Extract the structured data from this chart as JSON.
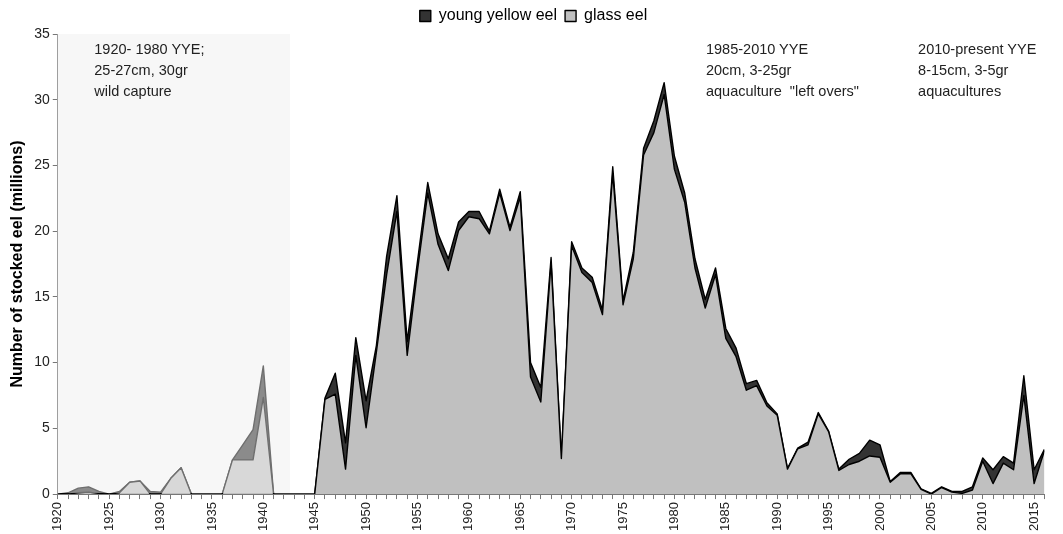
{
  "chart_data": {
    "type": "area",
    "stacked": true,
    "ylabel": "Number of stocked eel (millions)",
    "x": [
      1920,
      1921,
      1922,
      1923,
      1924,
      1925,
      1926,
      1927,
      1928,
      1929,
      1930,
      1931,
      1932,
      1933,
      1934,
      1935,
      1936,
      1937,
      1938,
      1939,
      1940,
      1941,
      1942,
      1943,
      1944,
      1945,
      1946,
      1947,
      1948,
      1949,
      1950,
      1951,
      1952,
      1953,
      1954,
      1955,
      1956,
      1957,
      1958,
      1959,
      1960,
      1961,
      1962,
      1963,
      1964,
      1965,
      1966,
      1967,
      1968,
      1969,
      1970,
      1971,
      1972,
      1973,
      1974,
      1975,
      1976,
      1977,
      1978,
      1979,
      1980,
      1981,
      1982,
      1983,
      1984,
      1985,
      1986,
      1987,
      1988,
      1989,
      1990,
      1991,
      1992,
      1993,
      1994,
      1995,
      1996,
      1997,
      1998,
      1999,
      2000,
      2001,
      2002,
      2003,
      2004,
      2005,
      2006,
      2007,
      2008,
      2009,
      2010,
      2011,
      2012,
      2013,
      2014,
      2015,
      2016
    ],
    "series": [
      {
        "name": "glass eel",
        "color": "#c0c0c0",
        "values": [
          0,
          0,
          0.1,
          0.15,
          0.05,
          0,
          0.1,
          0.9,
          1.0,
          0,
          0,
          1.2,
          2.0,
          0,
          0,
          0,
          0,
          2.6,
          2.6,
          2.6,
          7.35,
          0,
          0,
          0,
          0,
          0,
          7.2,
          7.6,
          1.9,
          10.55,
          5.05,
          10.8,
          16.7,
          21.5,
          10.55,
          17.0,
          22.9,
          19.0,
          17.0,
          20.05,
          21.1,
          20.95,
          19.8,
          22.9,
          20.05,
          22.6,
          8.9,
          7.0,
          17.6,
          2.7,
          18.9,
          16.85,
          16.1,
          13.65,
          24.4,
          14.4,
          17.9,
          25.8,
          27.5,
          30.4,
          24.7,
          22.2,
          17.2,
          14.15,
          16.7,
          11.85,
          10.45,
          7.9,
          8.25,
          6.7,
          6.0,
          1.9,
          3.45,
          3.75,
          6.1,
          4.75,
          1.8,
          2.25,
          2.5,
          2.9,
          2.8,
          0.9,
          1.55,
          1.55,
          0.35,
          0,
          0.5,
          0.15,
          0.05,
          0.3,
          2.5,
          0.8,
          2.35,
          1.85,
          7.5,
          0.8,
          3.3
        ]
      },
      {
        "name": "young yellow eel",
        "color": "#333333",
        "values": [
          0,
          0.1,
          0.35,
          0.4,
          0.15,
          0,
          0.1,
          0,
          0,
          0.2,
          0.15,
          0,
          0,
          0,
          0,
          0,
          0,
          0,
          1.15,
          2.3,
          2.4,
          0,
          0,
          0,
          0,
          0,
          0.1,
          1.6,
          2.0,
          1.35,
          2.05,
          0.5,
          1.4,
          1.2,
          1.05,
          0.7,
          0.8,
          0.8,
          0.9,
          0.65,
          0.4,
          0.55,
          0.2,
          0.3,
          0.25,
          0.4,
          1.1,
          1.1,
          0.4,
          0.05,
          0.3,
          0.35,
          0.4,
          0.35,
          0.5,
          0.3,
          0.5,
          0.5,
          0.9,
          0.9,
          1.0,
          0.7,
          0.7,
          0.65,
          0.5,
          0.75,
          0.65,
          0.5,
          0.4,
          0.25,
          0.1,
          0.05,
          0.05,
          0.2,
          0.1,
          0.05,
          0.1,
          0.4,
          0.6,
          1.2,
          0.95,
          0.05,
          0.1,
          0.1,
          0.05,
          0.05,
          0.05,
          0.05,
          0.15,
          0.25,
          0.25,
          1.05,
          0.5,
          0.5,
          1.5,
          1.05,
          0.1
        ]
      }
    ],
    "xlim": [
      1920,
      2016
    ],
    "xticks": [
      1920,
      {
        "value": 1921,
        "label": null
      },
      {
        "value": 1922,
        "label": null
      },
      {
        "value": 1923,
        "label": null
      },
      {
        "value": 1924,
        "label": null
      },
      1925,
      {
        "value": 1926,
        "label": null
      },
      {
        "value": 1927,
        "label": null
      },
      {
        "value": 1928,
        "label": null
      },
      {
        "value": 1929,
        "label": null
      },
      1930,
      {
        "value": 1931,
        "label": null
      },
      {
        "value": 1932,
        "label": null
      },
      {
        "value": 1933,
        "label": null
      },
      {
        "value": 1934,
        "label": null
      },
      1935,
      {
        "value": 1936,
        "label": null
      },
      {
        "value": 1937,
        "label": null
      },
      {
        "value": 1938,
        "label": null
      },
      {
        "value": 1939,
        "label": null
      },
      1940,
      {
        "value": 1941,
        "label": null
      },
      {
        "value": 1942,
        "label": null
      },
      {
        "value": 1943,
        "label": null
      },
      {
        "value": 1944,
        "label": null
      },
      1945,
      {
        "value": 1946,
        "label": null
      },
      {
        "value": 1947,
        "label": null
      },
      {
        "value": 1948,
        "label": null
      },
      {
        "value": 1949,
        "label": null
      },
      1950,
      {
        "value": 1951,
        "label": null
      },
      {
        "value": 1952,
        "label": null
      },
      {
        "value": 1953,
        "label": null
      },
      {
        "value": 1954,
        "label": null
      },
      1955,
      {
        "value": 1956,
        "label": null
      },
      {
        "value": 1957,
        "label": null
      },
      {
        "value": 1958,
        "label": null
      },
      {
        "value": 1959,
        "label": null
      },
      1960,
      {
        "value": 1961,
        "label": null
      },
      {
        "value": 1962,
        "label": null
      },
      {
        "value": 1963,
        "label": null
      },
      {
        "value": 1964,
        "label": null
      },
      1965,
      {
        "value": 1966,
        "label": null
      },
      {
        "value": 1967,
        "label": null
      },
      {
        "value": 1968,
        "label": null
      },
      {
        "value": 1969,
        "label": null
      },
      1970,
      {
        "value": 1971,
        "label": null
      },
      {
        "value": 1972,
        "label": null
      },
      {
        "value": 1973,
        "label": null
      },
      {
        "value": 1974,
        "label": null
      },
      1975,
      {
        "value": 1976,
        "label": null
      },
      {
        "value": 1977,
        "label": null
      },
      {
        "value": 1978,
        "label": null
      },
      {
        "value": 1979,
        "label": null
      },
      1980,
      {
        "value": 1981,
        "label": null
      },
      {
        "value": 1982,
        "label": null
      },
      {
        "value": 1983,
        "label": null
      },
      {
        "value": 1984,
        "label": null
      },
      1985,
      {
        "value": 1986,
        "label": null
      },
      {
        "value": 1987,
        "label": null
      },
      {
        "value": 1988,
        "label": null
      },
      {
        "value": 1989,
        "label": null
      },
      1990,
      {
        "value": 1991,
        "label": null
      },
      {
        "value": 1992,
        "label": null
      },
      {
        "value": 1993,
        "label": null
      },
      {
        "value": 1994,
        "label": null
      },
      1995,
      {
        "value": 1996,
        "label": null
      },
      {
        "value": 1997,
        "label": null
      },
      {
        "value": 1998,
        "label": null
      },
      {
        "value": 1999,
        "label": null
      },
      2000,
      {
        "value": 2001,
        "label": null
      },
      {
        "value": 2002,
        "label": null
      },
      {
        "value": 2003,
        "label": null
      },
      {
        "value": 2004,
        "label": null
      },
      2005,
      {
        "value": 2006,
        "label": null
      },
      {
        "value": 2007,
        "label": null
      },
      {
        "value": 2008,
        "label": null
      },
      {
        "value": 2009,
        "label": null
      },
      2010,
      {
        "value": 2011,
        "label": null
      },
      {
        "value": 2012,
        "label": null
      },
      {
        "value": 2013,
        "label": null
      },
      {
        "value": 2014,
        "label": null
      },
      2015,
      {
        "value": 2016,
        "label": null
      }
    ],
    "ylim": [
      0,
      35
    ],
    "yticks": [
      0,
      5,
      10,
      15,
      20,
      25,
      30,
      35
    ],
    "bands": [
      {
        "axis": "x",
        "from": 1920,
        "to": 1942.6,
        "color": "#f7f7f7"
      }
    ],
    "annotations": [
      "1920- 1980 YYE;\n25-27cm, 30gr\nwild capture",
      "1985-2010 YYE\n20cm, 3-25gr\naquaculture  \"left overs\"",
      "2010-present YYE\n8-15cm, 3-5gr\naquacultures"
    ],
    "legend": "top",
    "grid": false,
    "marker": "none"
  }
}
